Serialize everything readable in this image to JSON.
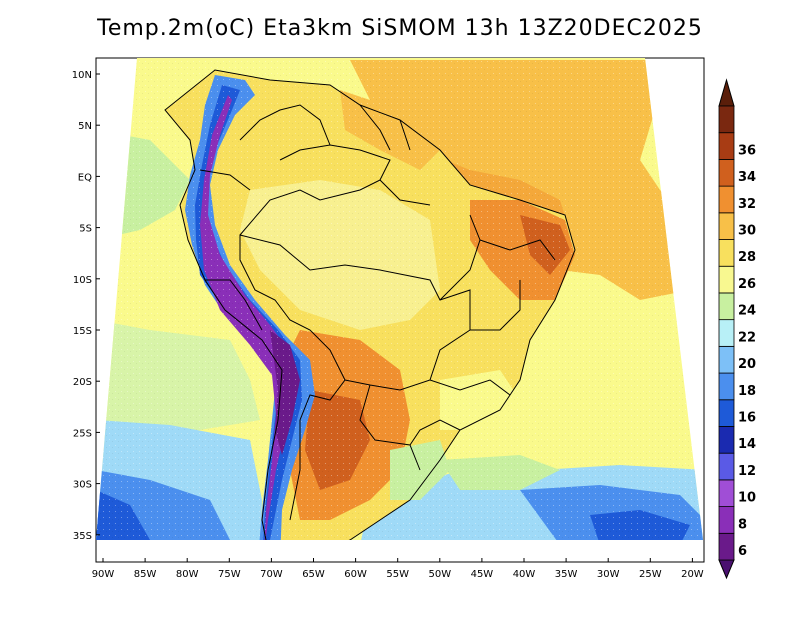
{
  "title": "Temp.2m(oC) Eta3km SiSMOM 13h 13Z20DEC2025",
  "map": {
    "variable": "2 m temperature",
    "units": "oC",
    "lat_labels": [
      "10N",
      "5N",
      "EQ",
      "5S",
      "10S",
      "15S",
      "20S",
      "25S",
      "30S",
      "35S"
    ],
    "lon_labels": [
      "90W",
      "85W",
      "80W",
      "75W",
      "70W",
      "65W",
      "60W",
      "55W",
      "50W",
      "45W",
      "40W",
      "35W",
      "30W",
      "25W",
      "20W"
    ]
  },
  "colorbar": {
    "levels": [
      "6",
      "8",
      "10",
      "12",
      "14",
      "16",
      "18",
      "20",
      "22",
      "24",
      "26",
      "28",
      "30",
      "32",
      "34",
      "36"
    ],
    "colors": [
      "#6a1a8a",
      "#8a2fb8",
      "#a04ed6",
      "#5a5ae6",
      "#1a2ab0",
      "#1e5ad8",
      "#4b8fee",
      "#7dc0f7",
      "#b8f0f7",
      "#c8f0a0",
      "#f8f890",
      "#f8e05e",
      "#f8c048",
      "#f09030",
      "#d0601e",
      "#a83c14",
      "#7a2810"
    ],
    "below_color": "#4a1070",
    "above_color": "#5a1e0a"
  }
}
